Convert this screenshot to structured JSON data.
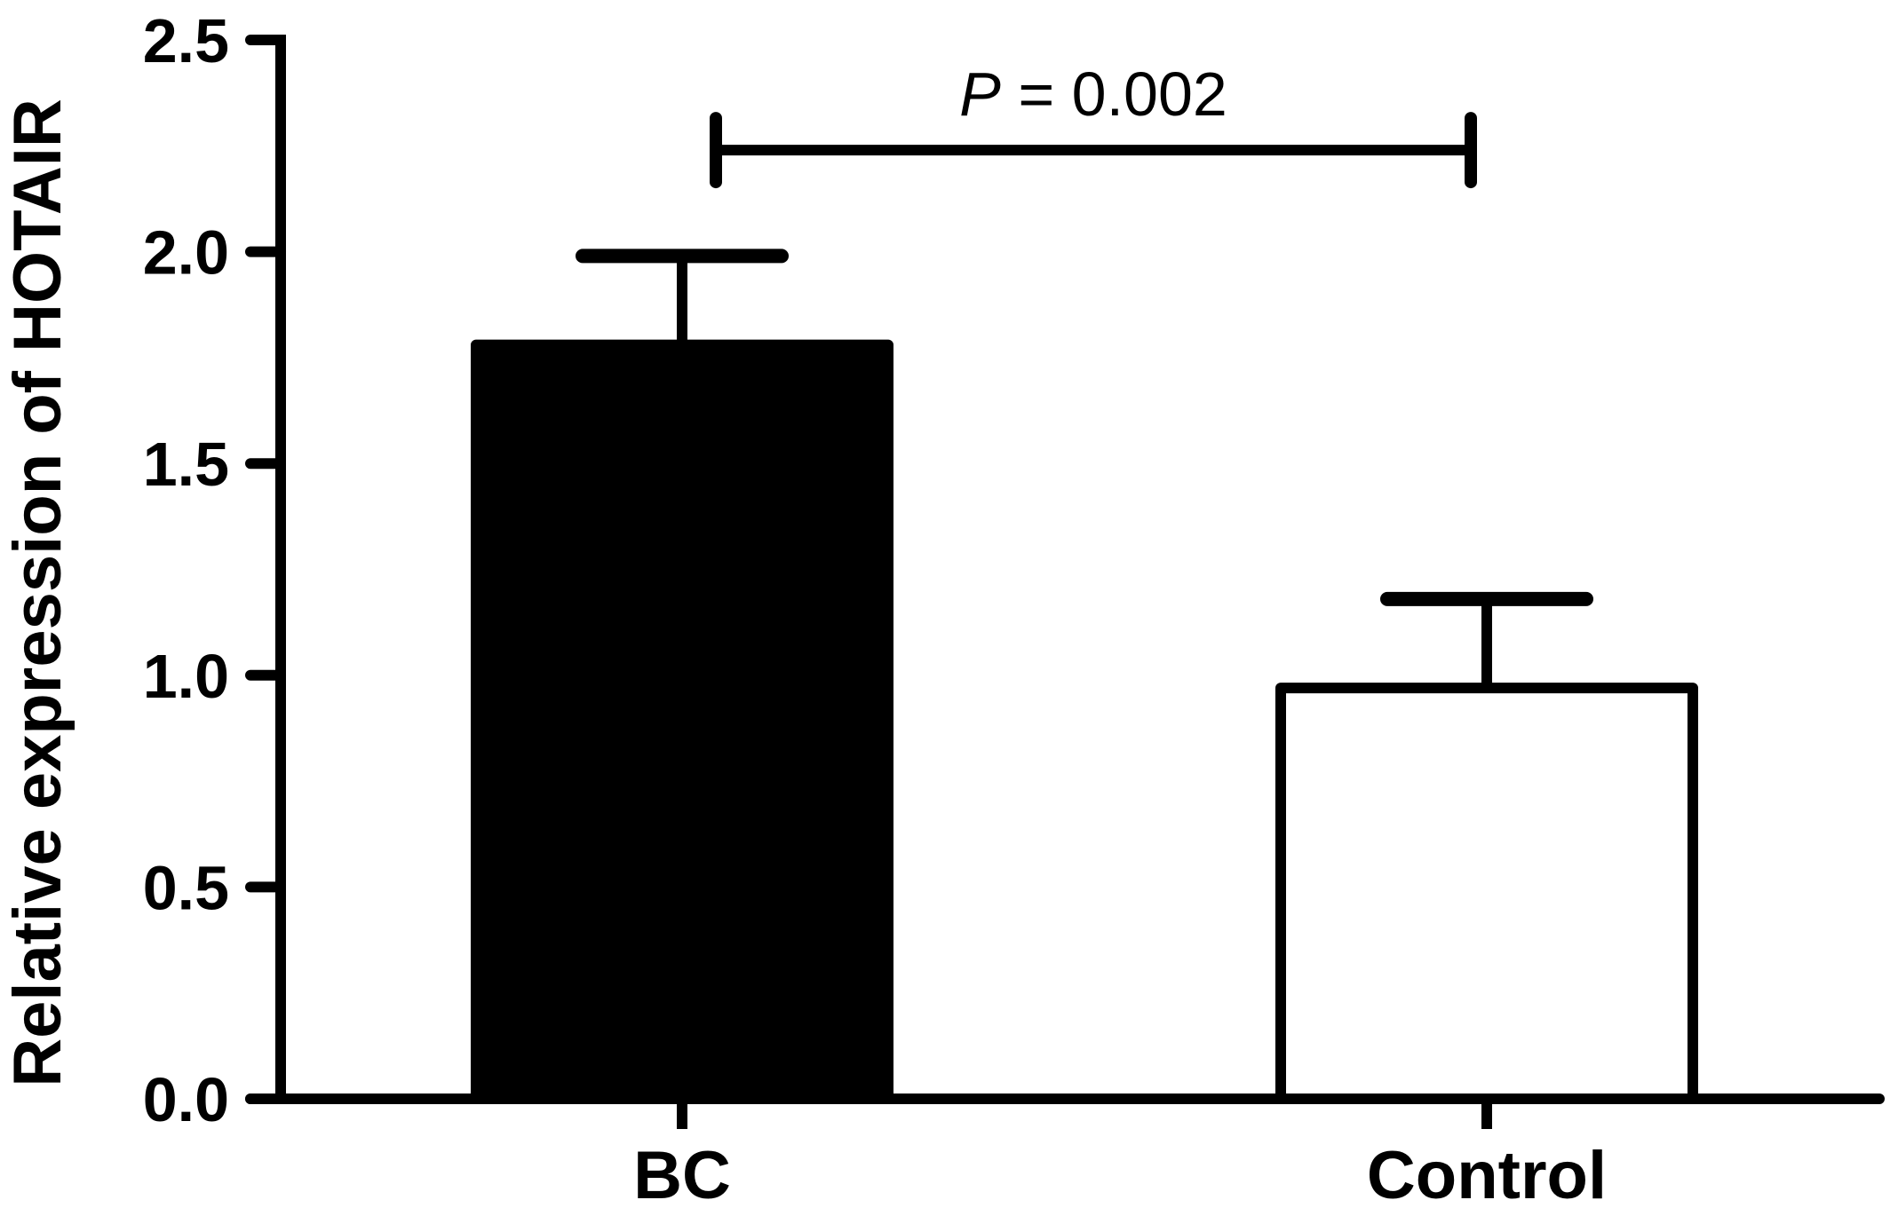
{
  "chart_data": {
    "type": "bar",
    "title": "",
    "xlabel": "",
    "ylabel": "Relative expression of HOTAIR",
    "categories": [
      "BC",
      "Control"
    ],
    "values": [
      1.78,
      0.97
    ],
    "error_upper": [
      0.21,
      0.21
    ],
    "ylim": [
      0.0,
      2.5
    ],
    "y_ticks": [
      0.0,
      0.5,
      1.0,
      1.5,
      2.0,
      2.5
    ],
    "y_tick_labels": [
      "0.0",
      "0.5",
      "1.0",
      "1.5",
      "2.0",
      "2.5"
    ],
    "grid": false,
    "legend": "none",
    "bar_fill_colors": [
      "#000000",
      "#ffffff"
    ],
    "bar_edge_color": "#000000",
    "annotation": {
      "prefix": "P",
      "text": " = 0.002",
      "between": [
        "BC",
        "Control"
      ],
      "y": 2.24
    }
  }
}
